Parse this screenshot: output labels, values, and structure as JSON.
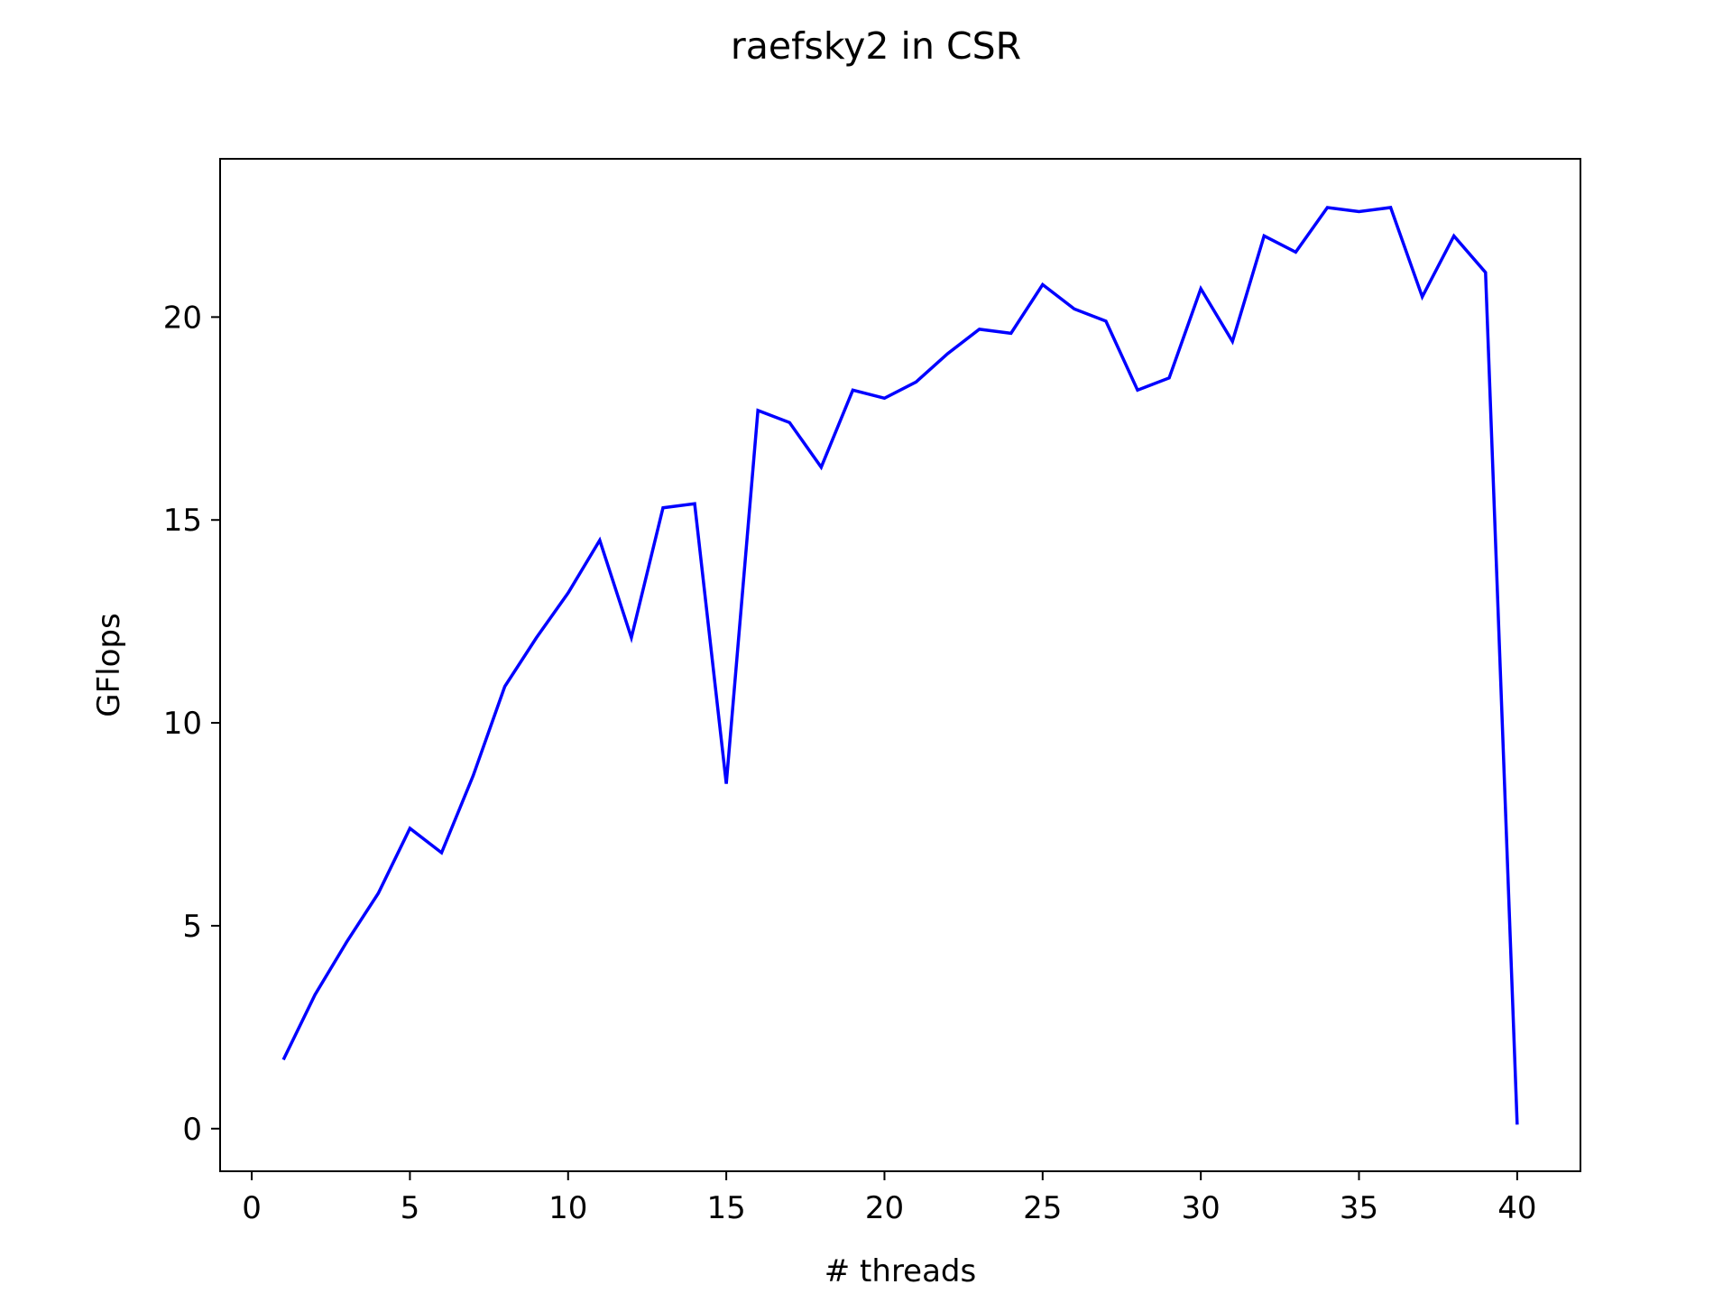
{
  "chart_data": {
    "type": "line",
    "title": "raefsky2 in CSR",
    "xlabel": "# threads",
    "ylabel": "GFlops",
    "xlim": [
      -1,
      42
    ],
    "ylim": [
      -1.05,
      23.9
    ],
    "xticks": [
      0,
      5,
      10,
      15,
      20,
      25,
      30,
      35,
      40
    ],
    "yticks": [
      0,
      5,
      10,
      15,
      20
    ],
    "grid": false,
    "legend": "none",
    "series": [
      {
        "color": "#0000ff",
        "x": [
          1,
          2,
          3,
          4,
          5,
          6,
          7,
          8,
          9,
          10,
          11,
          12,
          13,
          14,
          15,
          16,
          17,
          18,
          19,
          20,
          21,
          22,
          23,
          24,
          25,
          26,
          27,
          28,
          29,
          30,
          31,
          32,
          33,
          34,
          35,
          36,
          37,
          38,
          39,
          40
        ],
        "y": [
          1.7,
          3.3,
          4.6,
          5.8,
          7.4,
          6.8,
          8.7,
          10.9,
          12.1,
          13.2,
          14.5,
          12.1,
          15.3,
          15.4,
          8.5,
          17.7,
          17.4,
          16.3,
          18.2,
          18.0,
          18.4,
          19.1,
          19.7,
          19.6,
          20.8,
          20.2,
          19.9,
          18.2,
          18.5,
          20.7,
          19.4,
          22.0,
          21.6,
          22.7,
          22.6,
          22.7,
          20.5,
          22.0,
          21.1,
          0.1
        ]
      }
    ]
  }
}
